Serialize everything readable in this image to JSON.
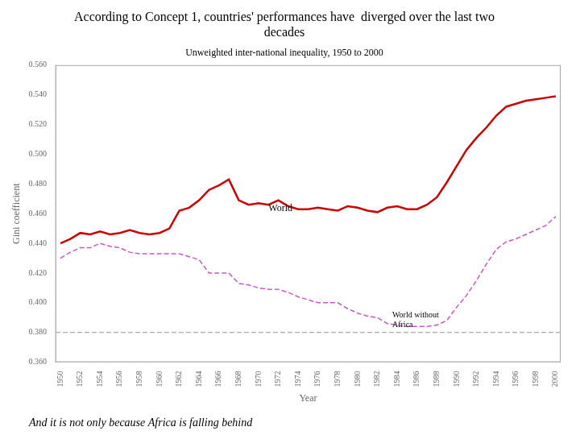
{
  "chart_data": {
    "type": "line",
    "title": [
      "According to Concept 1, countries' performances have  diverged over the last two",
      "decades"
    ],
    "subtitle": "Unweighted inter-national inequality, 1950 to 2000",
    "x_label": "Year",
    "y_label": "Gini coefficient",
    "caption": "And it is not only because Africa is falling behind",
    "x": [
      1950,
      1951,
      1952,
      1953,
      1954,
      1955,
      1956,
      1957,
      1958,
      1959,
      1960,
      1961,
      1962,
      1963,
      1964,
      1965,
      1966,
      1967,
      1968,
      1969,
      1970,
      1971,
      1972,
      1973,
      1974,
      1975,
      1976,
      1977,
      1978,
      1979,
      1980,
      1981,
      1982,
      1983,
      1984,
      1985,
      1986,
      1987,
      1988,
      1989,
      1990,
      1991,
      1992,
      1993,
      1994,
      1995,
      1996,
      1997,
      1998,
      1999,
      2000
    ],
    "series": [
      {
        "name": "World",
        "color": "#cc0000",
        "line_style": "solid",
        "label_at": {
          "x": 1971,
          "y": 0.4605
        },
        "values": [
          0.44,
          0.443,
          0.447,
          0.446,
          0.448,
          0.446,
          0.447,
          0.449,
          0.447,
          0.446,
          0.447,
          0.45,
          0.462,
          0.464,
          0.469,
          0.476,
          0.479,
          0.483,
          0.469,
          0.466,
          0.467,
          0.466,
          0.469,
          0.465,
          0.463,
          0.463,
          0.464,
          0.463,
          0.462,
          0.465,
          0.464,
          0.462,
          0.461,
          0.464,
          0.465,
          0.463,
          0.463,
          0.466,
          0.471,
          0.481,
          0.492,
          0.503,
          0.511,
          0.518,
          0.526,
          0.532,
          0.534,
          0.536,
          0.537,
          0.538,
          0.539
        ]
      },
      {
        "name": "World without\nAfrica",
        "color": "#cc55cc",
        "line_style": "dashed",
        "label_at": {
          "x": 1983.5,
          "y": 0.3825
        },
        "values": [
          0.43,
          0.434,
          0.437,
          0.437,
          0.44,
          0.438,
          0.437,
          0.434,
          0.433,
          0.433,
          0.433,
          0.433,
          0.433,
          0.431,
          0.429,
          0.42,
          0.42,
          0.42,
          0.413,
          0.412,
          0.41,
          0.409,
          0.409,
          0.407,
          0.404,
          0.402,
          0.4,
          0.4,
          0.4,
          0.396,
          0.393,
          0.391,
          0.39,
          0.386,
          0.385,
          0.384,
          0.384,
          0.384,
          0.385,
          0.388,
          0.397,
          0.405,
          0.415,
          0.426,
          0.436,
          0.441,
          0.443,
          0.446,
          0.449,
          0.452,
          0.458
        ]
      }
    ],
    "reference_lines": [
      {
        "y": 0.38,
        "color": "#aaaaaa",
        "line_style": "dashed"
      }
    ],
    "xlim": [
      1949.5,
      2000.5
    ],
    "xticks": [
      1950,
      1952,
      1954,
      1956,
      1958,
      1960,
      1962,
      1964,
      1966,
      1968,
      1970,
      1972,
      1974,
      1976,
      1978,
      1980,
      1982,
      1984,
      1986,
      1988,
      1990,
      1992,
      1994,
      1996,
      1998,
      2000
    ],
    "ylim": [
      0.36,
      0.56
    ],
    "yticks": [
      {
        "value": 0.36,
        "label": "0.360"
      },
      {
        "value": 0.38,
        "label": "0.380"
      },
      {
        "value": 0.4,
        "label": "0.400"
      },
      {
        "value": 0.42,
        "label": "0.420"
      },
      {
        "value": 0.44,
        "label": "0.440"
      },
      {
        "value": 0.46,
        "label": "0.460"
      },
      {
        "value": 0.48,
        "label": "0.480"
      },
      {
        "value": 0.5,
        "label": "0.500"
      },
      {
        "value": 0.52,
        "label": "0.520"
      },
      {
        "value": 0.54,
        "label": "0.540"
      },
      {
        "value": 0.56,
        "label": "0.560"
      }
    ],
    "grid": false
  }
}
